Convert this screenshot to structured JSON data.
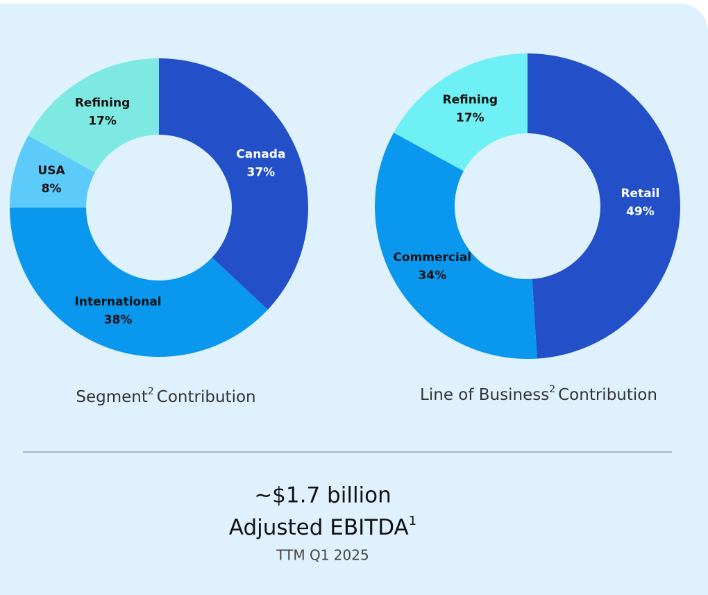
{
  "chart_data": [
    {
      "type": "pie",
      "categories": [
        "Canada",
        "International",
        "USA",
        "Refining"
      ],
      "values": [
        37,
        38,
        8,
        17
      ],
      "value_labels": [
        "37%",
        "38%",
        "8%",
        "17%"
      ],
      "colors": [
        "#2350c8",
        "#0a98ef",
        "#5ccbfa",
        "#7ee9e2"
      ],
      "caption": "Segment",
      "caption_sup": "2",
      "caption_rest": "Contribution"
    },
    {
      "type": "pie",
      "categories": [
        "Retail",
        "Commercial",
        "Refining"
      ],
      "values": [
        49,
        34,
        17
      ],
      "value_labels": [
        "49%",
        "34%",
        "17%"
      ],
      "colors": [
        "#2350c8",
        "#0a98ef",
        "#6ef0f4"
      ],
      "caption": "Line of Business",
      "caption_sup": "2",
      "caption_rest": "Contribution"
    }
  ],
  "summary": {
    "amount": "~$1.7 billion",
    "metric": "Adjusted EBITDA",
    "metric_sup": "1",
    "period": "TTM Q1 2025"
  }
}
